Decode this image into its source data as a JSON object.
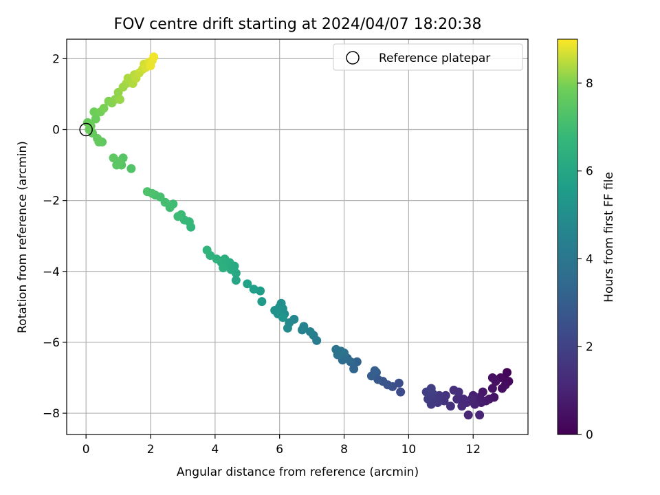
{
  "chart_data": {
    "type": "scatter",
    "title": "FOV centre drift starting at 2024/04/07 18:20:38",
    "xlabel": "Angular distance from reference (arcmin)",
    "ylabel": "Rotation from reference (arcmin)",
    "xlim": [
      -0.6,
      13.7
    ],
    "ylim": [
      -8.6,
      2.55
    ],
    "xticks": [
      0,
      2,
      4,
      6,
      8,
      10,
      12
    ],
    "yticks": [
      -8,
      -6,
      -4,
      -2,
      0,
      2
    ],
    "grid": true,
    "legend": {
      "position": "top-right",
      "entries": [
        "Reference platepar"
      ]
    },
    "reference_point": {
      "x": 0,
      "y": 0
    },
    "colorbar": {
      "label": "Hours from first FF file",
      "range": [
        0,
        9
      ],
      "ticks": [
        0,
        2,
        4,
        6,
        8
      ],
      "colormap": "viridis"
    },
    "points": [
      {
        "x": 13.05,
        "y": -6.85,
        "t": 0.1
      },
      {
        "x": 12.95,
        "y": -7.0,
        "t": 0.15
      },
      {
        "x": 13.1,
        "y": -7.1,
        "t": 0.2
      },
      {
        "x": 12.85,
        "y": -7.0,
        "t": 0.25
      },
      {
        "x": 13.0,
        "y": -7.2,
        "t": 0.3
      },
      {
        "x": 12.9,
        "y": -7.3,
        "t": 0.35
      },
      {
        "x": 12.6,
        "y": -7.0,
        "t": 0.4
      },
      {
        "x": 12.7,
        "y": -7.1,
        "t": 0.45
      },
      {
        "x": 12.6,
        "y": -7.3,
        "t": 0.5
      },
      {
        "x": 12.65,
        "y": -7.55,
        "t": 0.55
      },
      {
        "x": 12.5,
        "y": -7.6,
        "t": 0.6
      },
      {
        "x": 12.3,
        "y": -7.4,
        "t": 0.65
      },
      {
        "x": 12.4,
        "y": -7.65,
        "t": 0.7
      },
      {
        "x": 12.2,
        "y": -7.55,
        "t": 0.75
      },
      {
        "x": 12.25,
        "y": -7.7,
        "t": 0.8
      },
      {
        "x": 12.1,
        "y": -7.6,
        "t": 0.85
      },
      {
        "x": 12.0,
        "y": -7.5,
        "t": 0.9
      },
      {
        "x": 12.05,
        "y": -7.75,
        "t": 0.95
      },
      {
        "x": 11.95,
        "y": -7.6,
        "t": 1.0
      },
      {
        "x": 12.2,
        "y": -8.05,
        "t": 1.05
      },
      {
        "x": 11.85,
        "y": -8.05,
        "t": 1.1
      },
      {
        "x": 11.8,
        "y": -7.7,
        "t": 1.15
      },
      {
        "x": 11.7,
        "y": -7.6,
        "t": 1.2
      },
      {
        "x": 11.65,
        "y": -7.8,
        "t": 1.25
      },
      {
        "x": 11.5,
        "y": -7.6,
        "t": 1.3
      },
      {
        "x": 11.55,
        "y": -7.4,
        "t": 1.35
      },
      {
        "x": 11.4,
        "y": -7.35,
        "t": 1.4
      },
      {
        "x": 11.3,
        "y": -7.8,
        "t": 1.45
      },
      {
        "x": 11.15,
        "y": -7.5,
        "t": 1.5
      },
      {
        "x": 11.1,
        "y": -7.65,
        "t": 1.55
      },
      {
        "x": 10.95,
        "y": -7.5,
        "t": 1.6
      },
      {
        "x": 10.9,
        "y": -7.7,
        "t": 1.65
      },
      {
        "x": 10.8,
        "y": -7.6,
        "t": 1.7
      },
      {
        "x": 10.7,
        "y": -7.75,
        "t": 1.75
      },
      {
        "x": 10.6,
        "y": -7.6,
        "t": 1.8
      },
      {
        "x": 10.75,
        "y": -7.45,
        "t": 1.85
      },
      {
        "x": 10.55,
        "y": -7.4,
        "t": 1.9
      },
      {
        "x": 10.7,
        "y": -7.3,
        "t": 1.95
      },
      {
        "x": 9.75,
        "y": -7.4,
        "t": 2.3
      },
      {
        "x": 9.7,
        "y": -7.15,
        "t": 2.4
      },
      {
        "x": 9.5,
        "y": -7.25,
        "t": 2.5
      },
      {
        "x": 9.35,
        "y": -7.2,
        "t": 2.6
      },
      {
        "x": 9.2,
        "y": -7.1,
        "t": 2.7
      },
      {
        "x": 9.05,
        "y": -7.05,
        "t": 2.8
      },
      {
        "x": 9.0,
        "y": -6.85,
        "t": 2.9
      },
      {
        "x": 8.85,
        "y": -6.95,
        "t": 3.0
      },
      {
        "x": 8.95,
        "y": -6.8,
        "t": 3.05
      },
      {
        "x": 8.4,
        "y": -6.55,
        "t": 3.2
      },
      {
        "x": 8.3,
        "y": -6.75,
        "t": 3.3
      },
      {
        "x": 8.2,
        "y": -6.55,
        "t": 3.4
      },
      {
        "x": 8.1,
        "y": -6.45,
        "t": 3.5
      },
      {
        "x": 7.95,
        "y": -6.5,
        "t": 3.6
      },
      {
        "x": 8.0,
        "y": -6.3,
        "t": 3.7
      },
      {
        "x": 7.8,
        "y": -6.35,
        "t": 3.8
      },
      {
        "x": 7.9,
        "y": -6.25,
        "t": 3.85
      },
      {
        "x": 7.75,
        "y": -6.2,
        "t": 3.9
      },
      {
        "x": 7.15,
        "y": -5.95,
        "t": 4.2
      },
      {
        "x": 7.05,
        "y": -5.8,
        "t": 4.3
      },
      {
        "x": 6.95,
        "y": -5.7,
        "t": 4.4
      },
      {
        "x": 6.75,
        "y": -5.55,
        "t": 4.5
      },
      {
        "x": 6.7,
        "y": -5.65,
        "t": 4.55
      },
      {
        "x": 6.45,
        "y": -5.35,
        "t": 4.7
      },
      {
        "x": 6.3,
        "y": -5.45,
        "t": 4.8
      },
      {
        "x": 6.25,
        "y": -5.6,
        "t": 4.85
      },
      {
        "x": 6.15,
        "y": -5.2,
        "t": 4.9
      },
      {
        "x": 6.1,
        "y": -5.05,
        "t": 5.0
      },
      {
        "x": 6.05,
        "y": -4.9,
        "t": 5.05
      },
      {
        "x": 6.0,
        "y": -5.0,
        "t": 5.1
      },
      {
        "x": 5.95,
        "y": -5.2,
        "t": 5.15
      },
      {
        "x": 5.85,
        "y": -5.1,
        "t": 5.2
      },
      {
        "x": 6.1,
        "y": -5.3,
        "t": 5.25
      },
      {
        "x": 5.45,
        "y": -4.85,
        "t": 5.5
      },
      {
        "x": 5.4,
        "y": -4.55,
        "t": 5.6
      },
      {
        "x": 5.2,
        "y": -4.5,
        "t": 5.7
      },
      {
        "x": 5.0,
        "y": -4.35,
        "t": 5.8
      },
      {
        "x": 4.65,
        "y": -4.25,
        "t": 6.0
      },
      {
        "x": 4.65,
        "y": -4.05,
        "t": 6.05
      },
      {
        "x": 4.6,
        "y": -3.85,
        "t": 6.1
      },
      {
        "x": 4.5,
        "y": -3.95,
        "t": 6.15
      },
      {
        "x": 4.45,
        "y": -3.75,
        "t": 6.2
      },
      {
        "x": 4.35,
        "y": -3.85,
        "t": 6.25
      },
      {
        "x": 4.3,
        "y": -3.65,
        "t": 6.3
      },
      {
        "x": 4.2,
        "y": -3.75,
        "t": 6.35
      },
      {
        "x": 4.25,
        "y": -3.9,
        "t": 6.4
      },
      {
        "x": 4.05,
        "y": -3.65,
        "t": 6.45
      },
      {
        "x": 3.85,
        "y": -3.55,
        "t": 6.5
      },
      {
        "x": 3.75,
        "y": -3.4,
        "t": 6.55
      },
      {
        "x": 3.25,
        "y": -2.75,
        "t": 6.7
      },
      {
        "x": 3.2,
        "y": -2.6,
        "t": 6.75
      },
      {
        "x": 3.05,
        "y": -2.55,
        "t": 6.8
      },
      {
        "x": 2.95,
        "y": -2.4,
        "t": 6.85
      },
      {
        "x": 2.85,
        "y": -2.45,
        "t": 6.9
      },
      {
        "x": 2.7,
        "y": -2.1,
        "t": 6.95
      },
      {
        "x": 2.6,
        "y": -2.2,
        "t": 7.0
      },
      {
        "x": 2.45,
        "y": -2.05,
        "t": 7.05
      },
      {
        "x": 2.3,
        "y": -1.9,
        "t": 7.1
      },
      {
        "x": 2.15,
        "y": -1.85,
        "t": 7.15
      },
      {
        "x": 2.05,
        "y": -1.8,
        "t": 7.2
      },
      {
        "x": 1.9,
        "y": -1.75,
        "t": 7.25
      },
      {
        "x": 1.4,
        "y": -1.1,
        "t": 7.35
      },
      {
        "x": 1.15,
        "y": -0.8,
        "t": 7.4
      },
      {
        "x": 1.1,
        "y": -1.0,
        "t": 7.45
      },
      {
        "x": 1.0,
        "y": -0.9,
        "t": 7.5
      },
      {
        "x": 0.95,
        "y": -1.0,
        "t": 7.5
      },
      {
        "x": 0.85,
        "y": -0.8,
        "t": 7.55
      },
      {
        "x": 0.5,
        "y": -0.35,
        "t": 7.6
      },
      {
        "x": 0.4,
        "y": -0.35,
        "t": 7.65
      },
      {
        "x": 0.35,
        "y": -0.25,
        "t": 7.7
      },
      {
        "x": 0.2,
        "y": -0.1,
        "t": 7.7
      },
      {
        "x": 0.1,
        "y": 0.0,
        "t": 7.75
      },
      {
        "x": 0.05,
        "y": 0.2,
        "t": 7.75
      },
      {
        "x": 0.15,
        "y": 0.1,
        "t": 7.8
      },
      {
        "x": 0.3,
        "y": 0.3,
        "t": 7.8
      },
      {
        "x": 0.25,
        "y": 0.5,
        "t": 7.85
      },
      {
        "x": 0.45,
        "y": 0.5,
        "t": 7.9
      },
      {
        "x": 0.55,
        "y": 0.6,
        "t": 7.95
      },
      {
        "x": 0.7,
        "y": 0.8,
        "t": 8.0
      },
      {
        "x": 0.8,
        "y": 0.75,
        "t": 8.05
      },
      {
        "x": 0.9,
        "y": 0.85,
        "t": 8.1
      },
      {
        "x": 1.0,
        "y": 1.05,
        "t": 8.15
      },
      {
        "x": 1.05,
        "y": 0.85,
        "t": 8.2
      },
      {
        "x": 1.15,
        "y": 1.2,
        "t": 8.25
      },
      {
        "x": 1.25,
        "y": 1.3,
        "t": 8.3
      },
      {
        "x": 1.3,
        "y": 1.45,
        "t": 8.35
      },
      {
        "x": 1.45,
        "y": 1.3,
        "t": 8.4
      },
      {
        "x": 1.5,
        "y": 1.55,
        "t": 8.45
      },
      {
        "x": 1.55,
        "y": 1.45,
        "t": 8.5
      },
      {
        "x": 1.65,
        "y": 1.6,
        "t": 8.55
      },
      {
        "x": 1.75,
        "y": 1.7,
        "t": 8.6
      },
      {
        "x": 1.8,
        "y": 1.85,
        "t": 8.65
      },
      {
        "x": 1.85,
        "y": 1.75,
        "t": 8.7
      },
      {
        "x": 1.95,
        "y": 1.9,
        "t": 8.75
      },
      {
        "x": 2.05,
        "y": 1.95,
        "t": 8.8
      },
      {
        "x": 2.0,
        "y": 1.8,
        "t": 8.85
      },
      {
        "x": 2.1,
        "y": 2.05,
        "t": 8.9
      }
    ]
  }
}
